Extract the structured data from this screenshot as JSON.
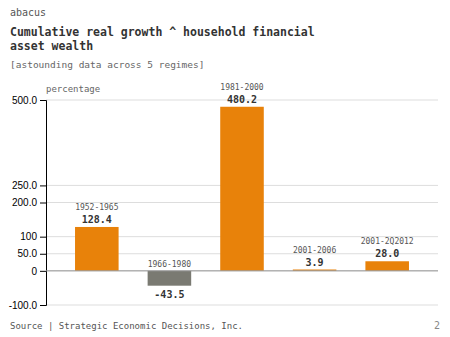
{
  "chart_data": {
    "type": "bar",
    "title": [
      "Cumulative real growth ^ household financial",
      "asset wealth"
    ],
    "subtitle": "[astounding data across 5 regimes]",
    "ylabel": "percentage",
    "annotations": [
      "abacus",
      "Source | Strategic Economic Decisions, Inc.",
      "2"
    ],
    "categories": [
      "1952-1965",
      "1966-1980",
      "1981-2000",
      "2001-2006",
      "2001-2Q2012"
    ],
    "values": [
      128.4,
      -43.5,
      480.2,
      3.9,
      28.0
    ],
    "value_labels": [
      "128.4",
      "-43.5",
      "480.2",
      "3.9",
      "28.0"
    ],
    "colors": [
      "#e8820a",
      "#7a7a72",
      "#e8820a",
      "#e8820a",
      "#e8820a"
    ],
    "ylim": [
      -100,
      500
    ],
    "yticks": [
      {
        "value": -100,
        "label": "-100.0"
      },
      0,
      {
        "value": 50,
        "label": "50.0"
      },
      100,
      {
        "value": 200,
        "label": "200.0"
      },
      {
        "value": 250,
        "label": "250.0"
      },
      {
        "value": 500,
        "label": "500.0"
      }
    ],
    "grid": true,
    "data_labels": true
  }
}
